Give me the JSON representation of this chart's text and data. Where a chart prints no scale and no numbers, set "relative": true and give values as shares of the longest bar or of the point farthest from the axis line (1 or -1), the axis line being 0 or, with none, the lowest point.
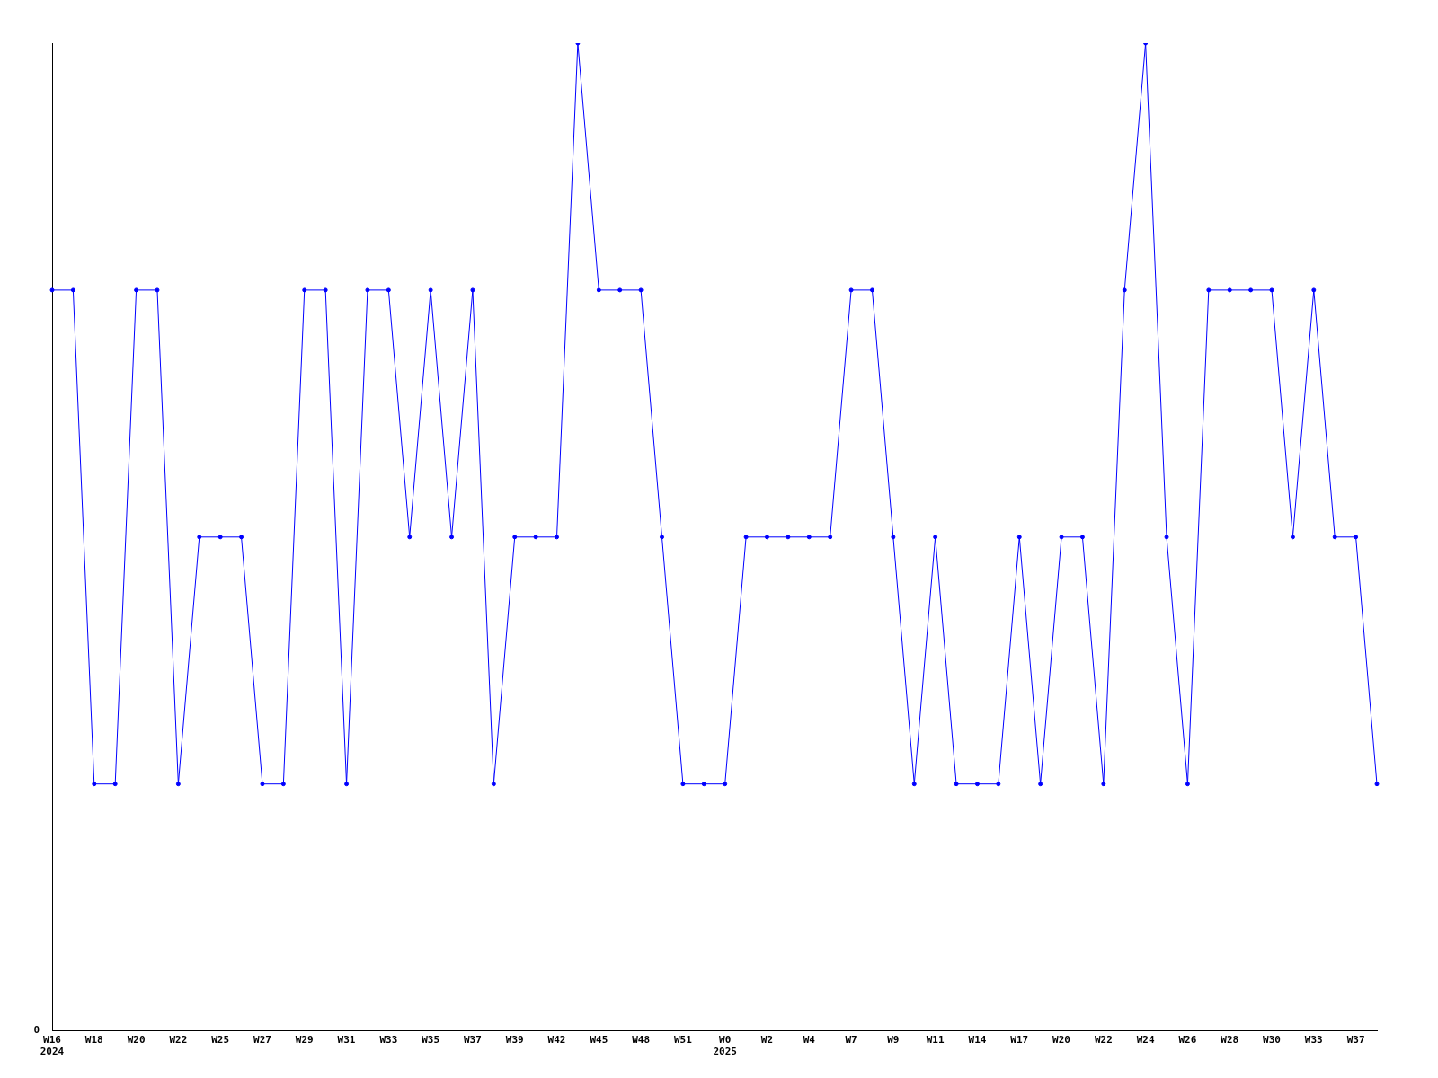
{
  "chart_data": {
    "type": "line",
    "relative": true,
    "categories": [
      "W16\n2024",
      null,
      "W18",
      null,
      "W20",
      null,
      "W22",
      null,
      "W25",
      null,
      "W27",
      null,
      "W29",
      null,
      "W31",
      null,
      "W33",
      null,
      "W35",
      null,
      "W37",
      null,
      "W39",
      null,
      "W42",
      null,
      "W45",
      null,
      "W48",
      null,
      "W51",
      null,
      "W0\n2025",
      null,
      "W2",
      null,
      "W4",
      null,
      "W7",
      null,
      "W9",
      null,
      "W11",
      null,
      "W14",
      null,
      "W17",
      null,
      "W20",
      null,
      "W22",
      null,
      "W24",
      null,
      "W26",
      null,
      "W28",
      null,
      "W30",
      null,
      "W33",
      null,
      "W37",
      null
    ],
    "series": [
      {
        "color": "#0000ff",
        "values": [
          0.75,
          0.75,
          0.25,
          0.25,
          0.75,
          0.75,
          0.25,
          0.5,
          0.5,
          0.5,
          0.25,
          0.25,
          0.75,
          0.75,
          0.25,
          0.75,
          0.75,
          0.5,
          0.75,
          0.5,
          0.75,
          0.25,
          0.5,
          0.5,
          0.5,
          1,
          0.75,
          0.75,
          0.75,
          0.5,
          0.25,
          0.25,
          0.25,
          0.5,
          0.5,
          0.5,
          0.5,
          0.5,
          0.75,
          0.75,
          0.5,
          0.25,
          0.5,
          0.25,
          0.25,
          0.25,
          0.5,
          0.25,
          0.5,
          0.5,
          0.25,
          0.75,
          1,
          0.5,
          0.25,
          0.75,
          0.75,
          0.75,
          0.75,
          0.5,
          0.75,
          0.5,
          0.5,
          0.25
        ]
      }
    ],
    "annotations": [
      "0"
    ],
    "grid": false,
    "legend": false,
    "marker": "circle",
    "line_style": "solid"
  }
}
